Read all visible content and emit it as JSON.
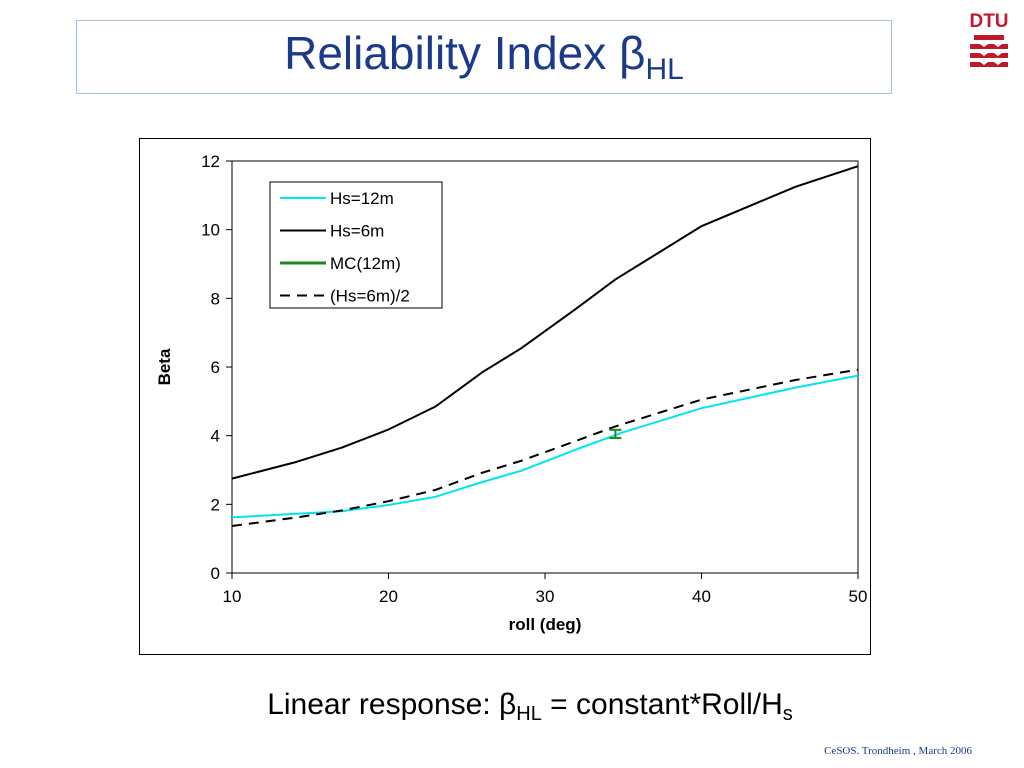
{
  "slide": {
    "title_main": "Reliability Index β",
    "title_sub": "HL",
    "logo_text": "DTU",
    "caption_pre": "Linear response: β",
    "caption_sub1": "HL",
    "caption_mid": " = constant*Roll/H",
    "caption_sub2": "s",
    "footer": "CeSOS. Trondheim , March 2006"
  },
  "colors": {
    "title": "#1c3a8a",
    "logo": "#c0182c",
    "hs12": "#00e5ee",
    "hs6": "#000000",
    "mc": "#1a8a1a"
  },
  "chart_data": {
    "type": "line",
    "xlabel": "roll (deg)",
    "ylabel": "Beta",
    "xlim": [
      10,
      50
    ],
    "ylim": [
      0,
      12
    ],
    "xticks": [
      10,
      20,
      30,
      40,
      50
    ],
    "yticks": [
      0,
      2,
      4,
      6,
      8,
      10,
      12
    ],
    "legend_position": "top-left",
    "series": [
      {
        "name": "Hs=12m",
        "color": "#00e5ee",
        "style": "solid",
        "x": [
          10,
          14,
          17,
          20,
          23,
          26,
          28.5,
          32,
          35,
          40,
          46,
          50
        ],
        "y": [
          1.62,
          1.72,
          1.8,
          1.98,
          2.22,
          2.65,
          2.98,
          3.6,
          4.1,
          4.8,
          5.4,
          5.75
        ]
      },
      {
        "name": "Hs=6m",
        "color": "#000000",
        "style": "solid",
        "x": [
          10,
          14,
          17,
          20,
          23,
          26,
          28.5,
          32,
          34.5,
          40,
          46,
          50
        ],
        "y": [
          2.75,
          3.22,
          3.65,
          4.18,
          4.85,
          5.85,
          6.55,
          7.7,
          8.55,
          10.1,
          11.25,
          11.85
        ]
      },
      {
        "name": "MC(12m)",
        "color": "#1a8a1a",
        "style": "errorbar",
        "x": [
          34.5
        ],
        "y": [
          4.05
        ],
        "err": 0.12
      },
      {
        "name": "(Hs=6m)/2",
        "color": "#000000",
        "style": "dashed",
        "x": [
          10,
          14,
          17,
          20,
          23,
          26,
          28.5,
          32,
          34.5,
          40,
          46,
          50
        ],
        "y": [
          1.37,
          1.61,
          1.82,
          2.09,
          2.42,
          2.92,
          3.27,
          3.85,
          4.27,
          5.05,
          5.62,
          5.92
        ]
      }
    ]
  }
}
